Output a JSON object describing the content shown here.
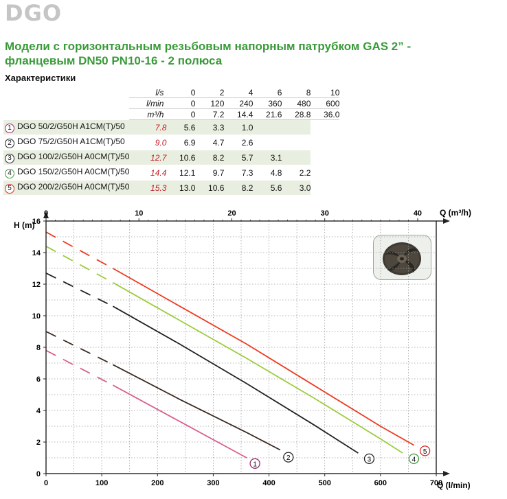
{
  "brand": "DGO",
  "heading_line1": "Модели с горизонтальным резьбовым напорным патрубком  GAS 2” -",
  "heading_line2": "фланцевым  DN50 PN10-16 - 2 полюса",
  "section_title": "Характеристики",
  "flow_table": {
    "rows": [
      {
        "unit": "l/s",
        "values": [
          "0",
          "2",
          "4",
          "6",
          "8",
          "10"
        ]
      },
      {
        "unit": "l/min",
        "values": [
          "0",
          "120",
          "240",
          "360",
          "480",
          "600"
        ]
      },
      {
        "unit": "m³/h",
        "values": [
          "0",
          "7.2",
          "14.4",
          "21.6",
          "28.8",
          "36.0"
        ]
      }
    ]
  },
  "models": [
    {
      "num": "1",
      "name": "DGO 50/2/G50H A1CM(T)/50",
      "h0": "7.8",
      "heads": [
        "5.6",
        "3.3",
        "1.0",
        "",
        ""
      ],
      "color": "#9b2a6e"
    },
    {
      "num": "2",
      "name": "DGO 75/2/G50H A1CM(T)/50",
      "h0": "9.0",
      "heads": [
        "6.9",
        "4.7",
        "2.6",
        "",
        ""
      ],
      "color": "#222222"
    },
    {
      "num": "3",
      "name": "DGO 100/2/G50H A0CM(T)/50",
      "h0": "12.7",
      "heads": [
        "10.6",
        "8.2",
        "5.7",
        "3.1",
        ""
      ],
      "color": "#222222"
    },
    {
      "num": "4",
      "name": "DGO 150/2/G50H A0CM(T)/50",
      "h0": "14.4",
      "heads": [
        "12.1",
        "9.7",
        "7.3",
        "4.8",
        "2.2"
      ],
      "color": "#3a9a3a"
    },
    {
      "num": "5",
      "name": "DGO 200/2/G50H A0CM(T)/50",
      "h0": "15.3",
      "heads": [
        "13.0",
        "10.6",
        "8.2",
        "5.6",
        "3.0"
      ],
      "color": "#d42a2a"
    }
  ],
  "chart_data": {
    "type": "line",
    "ylabel": "H (m)",
    "xlabel": "Q (l/min)",
    "x2label": "Q (m³/h)",
    "xlim": [
      0,
      700
    ],
    "ylim": [
      0,
      16
    ],
    "x_ticks": [
      0,
      100,
      200,
      300,
      400,
      500,
      600,
      700
    ],
    "y_ticks": [
      0,
      2,
      4,
      6,
      8,
      10,
      12,
      14,
      16
    ],
    "x2_ticks": [
      0,
      10,
      20,
      30,
      40
    ],
    "grid": "dotted",
    "series": [
      {
        "label": "1",
        "color": "#d9608f",
        "x": [
          0,
          120,
          240,
          360
        ],
        "y": [
          7.8,
          5.6,
          3.3,
          1.0
        ],
        "end_x": 360,
        "end_y": 0.9
      },
      {
        "label": "2",
        "color": "#3a2a22",
        "x": [
          0,
          120,
          240,
          360,
          420
        ],
        "y": [
          9.0,
          6.9,
          4.7,
          2.6,
          1.5
        ],
        "end_x": 420,
        "end_y": 1.3
      },
      {
        "label": "3",
        "color": "#222222",
        "x": [
          0,
          120,
          240,
          360,
          480,
          560
        ],
        "y": [
          12.7,
          10.6,
          8.2,
          5.7,
          3.1,
          1.3
        ],
        "end_x": 565,
        "end_y": 1.2
      },
      {
        "label": "4",
        "color": "#9ccc3c",
        "x": [
          0,
          120,
          240,
          360,
          480,
          600,
          640
        ],
        "y": [
          14.4,
          12.1,
          9.7,
          7.3,
          4.8,
          2.2,
          1.3
        ],
        "end_x": 645,
        "end_y": 1.2
      },
      {
        "label": "5",
        "color": "#ee3a1f",
        "x": [
          0,
          120,
          240,
          360,
          480,
          600,
          660
        ],
        "y": [
          15.3,
          13.0,
          10.6,
          8.2,
          5.6,
          3.0,
          1.8
        ],
        "end_x": 665,
        "end_y": 1.7
      }
    ]
  }
}
